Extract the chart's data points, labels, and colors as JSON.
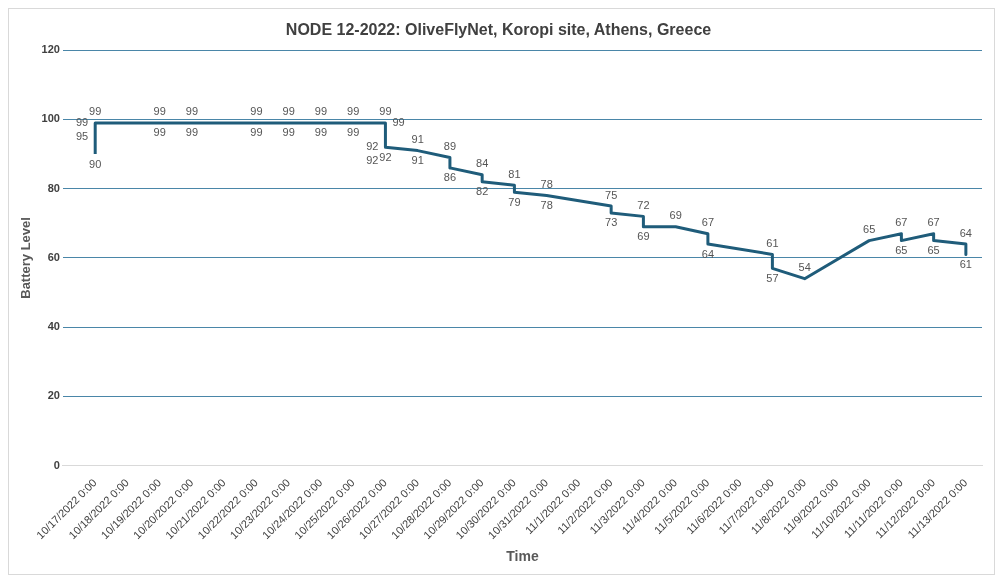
{
  "chart_data": {
    "type": "line",
    "title": "NODE 12-2022: OliveFlyNet, Koropi site, Athens, Greece",
    "xlabel": "Time",
    "ylabel": "Battery Level",
    "x": [
      "2022-10-17",
      "2022-10-17",
      "2022-10-17",
      "2022-10-17",
      "2022-10-19",
      "2022-10-19",
      "2022-10-20",
      "2022-10-20",
      "2022-10-22",
      "2022-10-22",
      "2022-10-23",
      "2022-10-23",
      "2022-10-24",
      "2022-10-24",
      "2022-10-25",
      "2022-10-25",
      "2022-10-26",
      "2022-10-26",
      "2022-10-26",
      "2022-10-26",
      "2022-10-26",
      "2022-10-27",
      "2022-10-27",
      "2022-10-28",
      "2022-10-28",
      "2022-10-29",
      "2022-10-29",
      "2022-10-30",
      "2022-10-30",
      "2022-10-31",
      "2022-10-31",
      "2022-11-02",
      "2022-11-02",
      "2022-11-03",
      "2022-11-03",
      "2022-11-04",
      "2022-11-05",
      "2022-11-05",
      "2022-11-07",
      "2022-11-07",
      "2022-11-08",
      "2022-11-10",
      "2022-11-11",
      "2022-11-11",
      "2022-11-12",
      "2022-11-12",
      "2022-11-13",
      "2022-11-13"
    ],
    "series": [
      {
        "color": "#1f5c7a",
        "values": [
          90,
          95,
          99,
          99,
          99,
          99,
          99,
          99,
          99,
          99,
          99,
          99,
          99,
          99,
          99,
          99,
          99,
          99,
          92,
          92,
          92,
          91,
          91,
          89,
          86,
          84,
          82,
          81,
          79,
          78,
          78,
          75,
          73,
          72,
          69,
          69,
          67,
          64,
          61,
          57,
          54,
          65,
          67,
          65,
          67,
          65,
          64,
          61
        ]
      }
    ],
    "xlim": [
      "2022-10-16",
      "2022-11-13T12:00"
    ],
    "xticks": [
      {
        "value": "2022-10-17",
        "label": "10/17/2022 0:00"
      },
      {
        "value": "2022-10-18",
        "label": "10/18/2022 0:00"
      },
      {
        "value": "2022-10-19",
        "label": "10/19/2022 0:00"
      },
      {
        "value": "2022-10-20",
        "label": "10/20/2022 0:00"
      },
      {
        "value": "2022-10-21",
        "label": "10/21/2022 0:00"
      },
      {
        "value": "2022-10-22",
        "label": "10/22/2022 0:00"
      },
      {
        "value": "2022-10-23",
        "label": "10/23/2022 0:00"
      },
      {
        "value": "2022-10-24",
        "label": "10/24/2022 0:00"
      },
      {
        "value": "2022-10-25",
        "label": "10/25/2022 0:00"
      },
      {
        "value": "2022-10-26",
        "label": "10/26/2022 0:00"
      },
      {
        "value": "2022-10-27",
        "label": "10/27/2022 0:00"
      },
      {
        "value": "2022-10-28",
        "label": "10/28/2022 0:00"
      },
      {
        "value": "2022-10-29",
        "label": "10/29/2022 0:00"
      },
      {
        "value": "2022-10-30",
        "label": "10/30/2022 0:00"
      },
      {
        "value": "2022-10-31",
        "label": "10/31/2022 0:00"
      },
      {
        "value": "2022-11-01",
        "label": "11/1/2022 0:00"
      },
      {
        "value": "2022-11-02",
        "label": "11/2/2022 0:00"
      },
      {
        "value": "2022-11-03",
        "label": "11/3/2022 0:00"
      },
      {
        "value": "2022-11-04",
        "label": "11/4/2022 0:00"
      },
      {
        "value": "2022-11-05",
        "label": "11/5/2022 0:00"
      },
      {
        "value": "2022-11-06",
        "label": "11/6/2022 0:00"
      },
      {
        "value": "2022-11-07",
        "label": "11/7/2022 0:00"
      },
      {
        "value": "2022-11-08",
        "label": "11/8/2022 0:00"
      },
      {
        "value": "2022-11-09",
        "label": "11/9/2022 0:00"
      },
      {
        "value": "2022-11-10",
        "label": "11/10/2022 0:00"
      },
      {
        "value": "2022-11-11",
        "label": "11/11/2022 0:00"
      },
      {
        "value": "2022-11-12",
        "label": "11/12/2022 0:00"
      },
      {
        "value": "2022-11-13",
        "label": "11/13/2022 0:00"
      }
    ],
    "ylim": [
      0,
      120
    ],
    "yticks": [
      0,
      20,
      40,
      60,
      80,
      100,
      120
    ],
    "grid": "y",
    "legend": false,
    "marker": "none",
    "line_style": "solid",
    "data_labels": true
  }
}
